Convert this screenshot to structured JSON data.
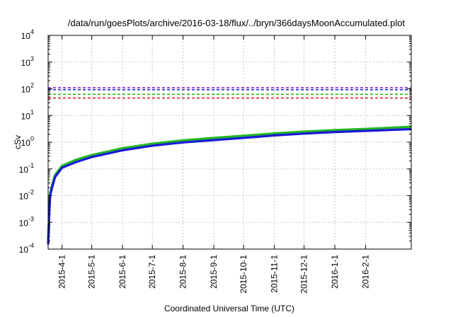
{
  "chart_data": {
    "type": "line",
    "title": "/data/run/goesPlots/archive/2016-03-18/flux/../bryn/366daysMoonAccumulated.plot",
    "xlabel": "Coordinated Universal Time (UTC)",
    "ylabel": "cSv",
    "yscale": "log",
    "ylim": [
      0.0001,
      10000
    ],
    "xlim": [
      "2015-03-18",
      "2016-03-18"
    ],
    "grid": true,
    "x_ticks": [
      "2015-4-1",
      "2015-5-1",
      "2015-6-1",
      "2015-7-1",
      "2015-8-1",
      "2015-9-1",
      "2015-10-1",
      "2015-11-1",
      "2015-12-1",
      "2016-1-1",
      "2016-2-1"
    ],
    "y_ticks": [
      {
        "base": "10",
        "exp": "-4",
        "value": 0.0001
      },
      {
        "base": "10",
        "exp": "-3",
        "value": 0.001
      },
      {
        "base": "10",
        "exp": "-2",
        "value": 0.01
      },
      {
        "base": "10",
        "exp": "-1",
        "value": 0.1
      },
      {
        "base": "10",
        "exp": "0",
        "value": 1
      },
      {
        "base": "10",
        "exp": "1",
        "value": 10
      },
      {
        "base": "10",
        "exp": "2",
        "value": 100
      },
      {
        "base": "10",
        "exp": "3",
        "value": 1000
      },
      {
        "base": "10",
        "exp": "4",
        "value": 10000
      }
    ],
    "thresholds": [
      {
        "value": 110,
        "color": "#8a2be2"
      },
      {
        "value": 92,
        "color": "#1f1fcf"
      },
      {
        "value": 62,
        "color": "#22b822"
      },
      {
        "value": 45,
        "color": "#e02020"
      }
    ],
    "series": [
      {
        "color": "#22b822",
        "x": [
          "2015-03-18",
          "2015-03-19",
          "2015-03-20",
          "2015-03-22",
          "2015-03-25",
          "2015-04-01",
          "2015-04-15",
          "2015-05-01",
          "2015-06-01",
          "2015-07-01",
          "2015-08-01",
          "2015-09-01",
          "2015-10-01",
          "2015-11-01",
          "2015-12-01",
          "2016-01-01",
          "2016-02-01",
          "2016-03-18"
        ],
        "y": [
          0.0002,
          0.002,
          0.012,
          0.025,
          0.06,
          0.13,
          0.22,
          0.33,
          0.6,
          0.88,
          1.18,
          1.45,
          1.75,
          2.15,
          2.5,
          2.85,
          3.15,
          3.8
        ]
      },
      {
        "color": "#1a1ad8",
        "x": [
          "2015-03-18",
          "2015-03-19",
          "2015-03-20",
          "2015-03-22",
          "2015-03-25",
          "2015-04-01",
          "2015-04-15",
          "2015-05-01",
          "2015-06-01",
          "2015-07-01",
          "2015-08-01",
          "2015-09-01",
          "2015-10-01",
          "2015-11-01",
          "2015-12-01",
          "2016-01-01",
          "2016-02-01",
          "2016-03-18"
        ],
        "y": [
          0.00015,
          0.0015,
          0.01,
          0.02,
          0.05,
          0.11,
          0.18,
          0.28,
          0.5,
          0.74,
          0.98,
          1.2,
          1.45,
          1.8,
          2.1,
          2.4,
          2.65,
          3.1
        ]
      }
    ]
  }
}
